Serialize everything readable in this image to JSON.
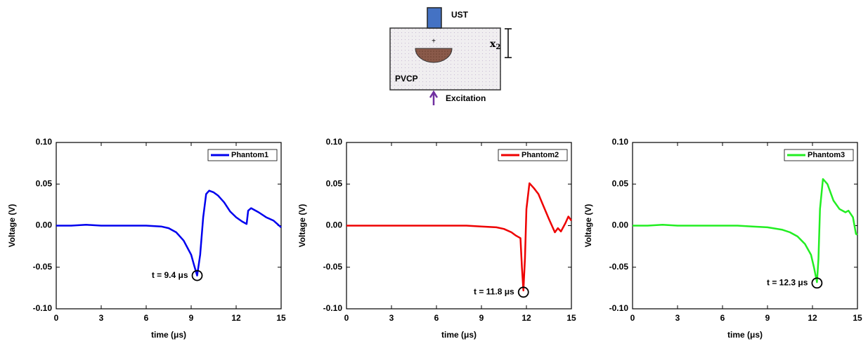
{
  "diagram": {
    "transducer": "UST",
    "depth_symbol": "x",
    "depth_subscript": "2",
    "medium": "PVCP",
    "source": "Excitation"
  },
  "chart_data": [
    {
      "type": "line",
      "xlabel": "time (μs)",
      "ylabel": "Voltage (V)",
      "xlim": [
        0,
        15
      ],
      "ylim": [
        -0.1,
        0.1
      ],
      "xticks": [
        0,
        3,
        6,
        9,
        12,
        15
      ],
      "yticks": [
        {
          "value": -0.1,
          "label": "-0.10"
        },
        {
          "value": -0.05,
          "label": "-0.05"
        },
        {
          "value": 0,
          "label": "0.00"
        },
        {
          "value": 0.05,
          "label": "0.05"
        },
        {
          "value": 0.1,
          "label": "0.10"
        }
      ],
      "legend": "upper right",
      "x": [
        0,
        1,
        2,
        3,
        4,
        5,
        6,
        7,
        7.5,
        8,
        8.5,
        9,
        9.2,
        9.4,
        9.6,
        9.8,
        10,
        10.2,
        10.5,
        10.8,
        11.2,
        11.6,
        12,
        12.4,
        12.7,
        12.8,
        13,
        13.5,
        14,
        14.5,
        15
      ],
      "series": [
        {
          "name": "Phantom1",
          "color": "#0000ee",
          "values": [
            0,
            0,
            0.001,
            0,
            0,
            0,
            0,
            -0.001,
            -0.003,
            -0.008,
            -0.018,
            -0.035,
            -0.048,
            -0.06,
            -0.035,
            0.01,
            0.038,
            0.042,
            0.04,
            0.036,
            0.028,
            0.017,
            0.01,
            0.005,
            0.002,
            0.018,
            0.021,
            0.016,
            0.01,
            0.006,
            -0.002
          ]
        }
      ],
      "annotations": [
        {
          "text": "t = 9.4 μs",
          "x": 9.4,
          "y": -0.06
        }
      ]
    },
    {
      "type": "line",
      "xlabel": "time (μs)",
      "ylabel": "Voltage (V)",
      "xlim": [
        0,
        15
      ],
      "ylim": [
        -0.1,
        0.1
      ],
      "xticks": [
        0,
        3,
        6,
        9,
        12,
        15
      ],
      "yticks": [
        {
          "value": -0.1,
          "label": "-0.10"
        },
        {
          "value": -0.05,
          "label": "-0.05"
        },
        {
          "value": 0,
          "label": "0.00"
        },
        {
          "value": 0.05,
          "label": "0.05"
        },
        {
          "value": 0.1,
          "label": "0.10"
        }
      ],
      "legend": "upper right",
      "x": [
        0,
        1,
        2,
        3,
        4,
        5,
        6,
        7,
        8,
        9,
        10,
        10.5,
        11,
        11.3,
        11.6,
        11.7,
        11.8,
        11.9,
        12,
        12.2,
        12.5,
        12.8,
        13.1,
        13.5,
        13.9,
        14.1,
        14.3,
        14.6,
        14.8,
        15
      ],
      "series": [
        {
          "name": "Phantom2",
          "color": "#ee0000",
          "values": [
            0,
            0,
            0,
            0,
            0,
            0,
            0,
            0,
            0,
            -0.001,
            -0.002,
            -0.004,
            -0.008,
            -0.012,
            -0.015,
            -0.05,
            -0.078,
            -0.04,
            0.02,
            0.051,
            0.045,
            0.038,
            0.025,
            0.008,
            -0.008,
            -0.003,
            -0.007,
            0.003,
            0.011,
            0.006
          ]
        }
      ],
      "annotations": [
        {
          "text": "t = 11.8 μs",
          "x": 11.8,
          "y": -0.08
        }
      ]
    },
    {
      "type": "line",
      "xlabel": "time (μs)",
      "ylabel": "Voltage (V)",
      "xlim": [
        0,
        15
      ],
      "ylim": [
        -0.1,
        0.1
      ],
      "xticks": [
        0,
        3,
        6,
        9,
        12,
        15
      ],
      "yticks": [
        {
          "value": -0.1,
          "label": "-0.10"
        },
        {
          "value": -0.05,
          "label": "-0.05"
        },
        {
          "value": 0,
          "label": "0.00"
        },
        {
          "value": 0.05,
          "label": "0.05"
        },
        {
          "value": 0.1,
          "label": "0.10"
        }
      ],
      "legend": "upper right",
      "x": [
        0,
        1,
        2,
        3,
        4,
        5,
        6,
        7,
        8,
        9,
        10,
        10.5,
        11,
        11.5,
        11.9,
        12.1,
        12.3,
        12.4,
        12.5,
        12.7,
        13,
        13.4,
        13.8,
        14.2,
        14.4,
        14.7,
        14.9,
        15
      ],
      "series": [
        {
          "name": "Phantom3",
          "color": "#22ee22",
          "values": [
            0,
            0,
            0.001,
            0,
            0,
            0,
            0,
            0,
            -0.001,
            -0.002,
            -0.005,
            -0.008,
            -0.013,
            -0.022,
            -0.035,
            -0.05,
            -0.068,
            -0.04,
            0.02,
            0.056,
            0.05,
            0.03,
            0.02,
            0.016,
            0.018,
            0.01,
            -0.01,
            -0.011
          ]
        }
      ],
      "annotations": [
        {
          "text": "t = 12.3 μs",
          "x": 12.3,
          "y": -0.069
        }
      ]
    }
  ]
}
